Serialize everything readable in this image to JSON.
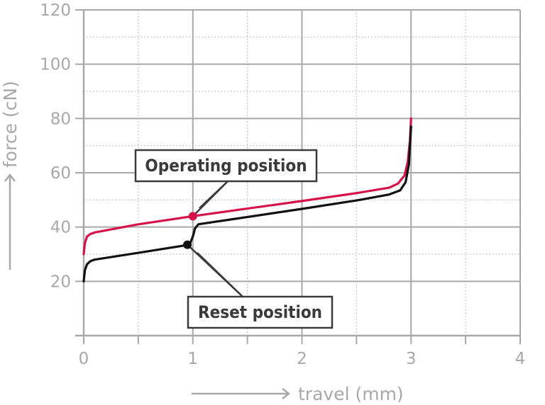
{
  "chart_data": {
    "type": "line",
    "title": "",
    "xlabel": "travel (mm)",
    "ylabel": "force (cN)",
    "xlim": [
      0,
      4
    ],
    "ylim": [
      0,
      120
    ],
    "x_ticks": [
      0,
      1,
      2,
      3,
      4
    ],
    "y_ticks": [
      20,
      40,
      60,
      80,
      100,
      120
    ],
    "x_minor_ticks": [
      0.5,
      1.5,
      2.5,
      3.5
    ],
    "y_minor_ticks": [
      30,
      50,
      70,
      90,
      110
    ],
    "grid": true,
    "series": [
      {
        "color": "#d6124b",
        "x": [
          0,
          0.01,
          0.03,
          0.06,
          0.1,
          0.5,
          1.0,
          1.5,
          2.0,
          2.5,
          2.8,
          2.88,
          2.94,
          2.97,
          2.99,
          3.0
        ],
        "y": [
          30,
          34,
          36.5,
          37.4,
          38,
          41,
          44,
          46.8,
          49.6,
          52.5,
          54.5,
          56,
          59,
          64,
          72,
          80
        ]
      },
      {
        "color": "#111111",
        "x": [
          0,
          0.01,
          0.03,
          0.06,
          0.1,
          0.5,
          0.97,
          1.0,
          1.02,
          1.05,
          1.08,
          1.5,
          2.0,
          2.5,
          2.8,
          2.9,
          2.95,
          2.98,
          3.0
        ],
        "y": [
          20,
          24,
          26.3,
          27.4,
          28,
          30.5,
          33.5,
          36.5,
          39.5,
          41,
          41.2,
          43.7,
          46.7,
          49.8,
          52,
          53.5,
          56.5,
          63,
          77
        ]
      }
    ],
    "annotations": [
      {
        "text": "Operating position",
        "x": 1.0,
        "y": 44,
        "color": "#d6124b"
      },
      {
        "text": "Reset position",
        "x": 0.95,
        "y": 33.5,
        "color": "#111111"
      }
    ]
  }
}
